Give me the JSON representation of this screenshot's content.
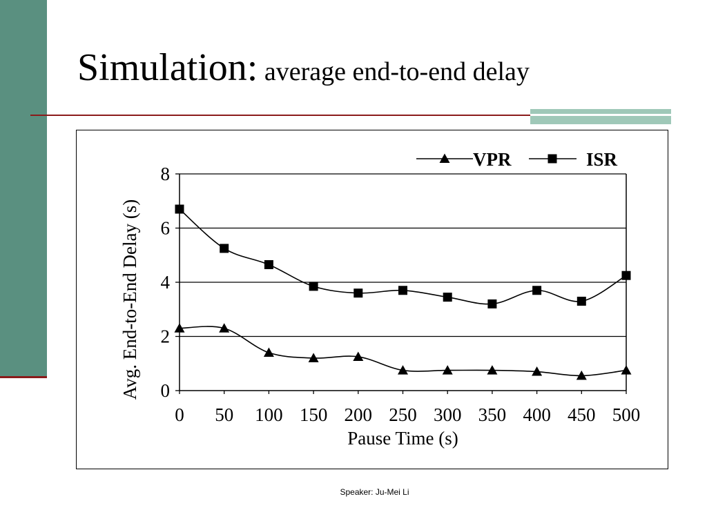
{
  "slide": {
    "title_main": "Simulation:",
    "title_sub": " average end-to-end delay",
    "footer": "Speaker: Ju-Mei Li"
  },
  "colors": {
    "sidebar": "#5a9080",
    "rule": "#8b1a1a",
    "accent": "#9fc8b8"
  },
  "chart_data": {
    "type": "line",
    "xlabel": "Pause Time (s)",
    "ylabel": "Avg. End-to-End Delay (s)",
    "x": [
      0,
      50,
      100,
      150,
      200,
      250,
      300,
      350,
      400,
      450,
      500
    ],
    "xlim": [
      0,
      500
    ],
    "ylim": [
      0,
      8
    ],
    "xticks": [
      0,
      50,
      100,
      150,
      200,
      250,
      300,
      350,
      400,
      450,
      500
    ],
    "yticks": [
      0,
      2,
      4,
      6,
      8
    ],
    "grid": "horizontal",
    "legend": "top-right",
    "series": [
      {
        "name": "VPR",
        "marker": "triangle",
        "values": [
          2.3,
          2.3,
          1.4,
          1.2,
          1.25,
          0.75,
          0.75,
          0.75,
          0.7,
          0.55,
          0.75
        ]
      },
      {
        "name": "ISR",
        "marker": "square",
        "values": [
          6.7,
          5.25,
          4.65,
          3.85,
          3.6,
          3.7,
          3.45,
          3.2,
          3.7,
          3.3,
          4.25
        ]
      }
    ]
  }
}
